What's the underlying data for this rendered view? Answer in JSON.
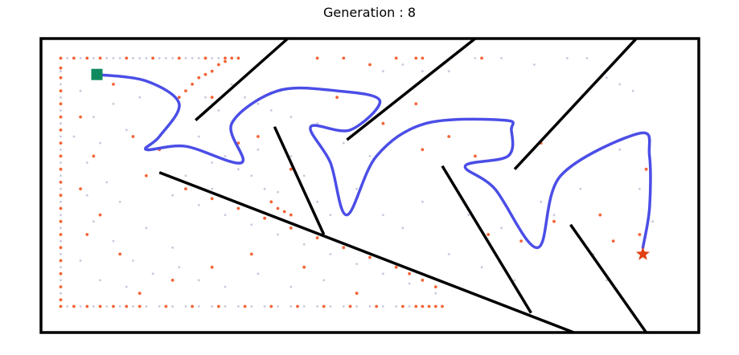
{
  "chart_data": {
    "type": "scatter",
    "title": "Generation : 8",
    "xlabel": "",
    "ylabel": "",
    "xlim": [
      0,
      100
    ],
    "ylim": [
      0,
      45
    ],
    "grid": false,
    "colors": {
      "frame": "#000000",
      "walls": "#000000",
      "path": "#4b4ee6",
      "archive_points": "#9a9ac0",
      "population_points": "#f25c2a",
      "start": "#0f8a5f",
      "goal": "#e04010"
    },
    "start_marker": {
      "shape": "square",
      "x": 8.5,
      "y": 39.5
    },
    "goal_marker": {
      "shape": "star",
      "x": 91.5,
      "y": 12
    },
    "walls": [
      [
        [
          23.5,
          32.5
        ],
        [
          37.5,
          45
        ]
      ],
      [
        [
          18,
          24.5
        ],
        [
          81,
          0
        ]
      ],
      [
        [
          35.5,
          31.5
        ],
        [
          43,
          15
        ]
      ],
      [
        [
          46.5,
          29.5
        ],
        [
          66,
          45
        ]
      ],
      [
        [
          61,
          25.5
        ],
        [
          74.5,
          3
        ]
      ],
      [
        [
          72,
          25
        ],
        [
          90.5,
          45
        ]
      ],
      [
        [
          80.5,
          16.5
        ],
        [
          92,
          0
        ]
      ]
    ],
    "path": [
      [
        8.5,
        39.5
      ],
      [
        16,
        38.5
      ],
      [
        21,
        35
      ],
      [
        18,
        30
      ],
      [
        16,
        28
      ],
      [
        22,
        28.5
      ],
      [
        30.5,
        26
      ],
      [
        29,
        32
      ],
      [
        36,
        37
      ],
      [
        45,
        37
      ],
      [
        51.5,
        35.5
      ],
      [
        47,
        31
      ],
      [
        41,
        31.5
      ],
      [
        44,
        26
      ],
      [
        46.5,
        18
      ],
      [
        51,
        27
      ],
      [
        58.5,
        32
      ],
      [
        70.5,
        32.5
      ],
      [
        71.5,
        31
      ],
      [
        71,
        27
      ],
      [
        64.5,
        25.5
      ],
      [
        69,
        22
      ],
      [
        75.5,
        13
      ],
      [
        79,
        24
      ],
      [
        91,
        30.5
      ],
      [
        92.5,
        27
      ],
      [
        92.5,
        19
      ],
      [
        91.5,
        13
      ]
    ],
    "archive_points": [
      [
        3,
        42
      ],
      [
        4,
        42
      ],
      [
        5,
        42
      ],
      [
        6,
        42
      ],
      [
        7,
        42
      ],
      [
        8,
        42
      ],
      [
        9,
        42
      ],
      [
        10,
        42
      ],
      [
        11,
        42
      ],
      [
        12,
        42
      ],
      [
        13,
        42
      ],
      [
        14,
        42
      ],
      [
        15,
        42
      ],
      [
        16,
        42
      ],
      [
        17,
        42
      ],
      [
        18,
        42
      ],
      [
        19,
        42
      ],
      [
        20,
        42
      ],
      [
        21,
        42
      ],
      [
        22,
        42
      ],
      [
        23,
        42
      ],
      [
        24,
        42
      ],
      [
        25,
        42
      ],
      [
        26,
        42
      ],
      [
        27,
        42
      ],
      [
        28,
        42
      ],
      [
        29,
        42
      ],
      [
        30,
        42
      ],
      [
        3,
        40
      ],
      [
        3,
        38
      ],
      [
        3,
        36
      ],
      [
        3,
        34
      ],
      [
        3,
        32
      ],
      [
        3,
        30
      ],
      [
        3,
        28
      ],
      [
        3,
        26
      ],
      [
        3,
        24
      ],
      [
        3,
        22
      ],
      [
        3,
        20
      ],
      [
        3,
        18
      ],
      [
        3,
        16
      ],
      [
        3,
        14
      ],
      [
        3,
        12
      ],
      [
        3,
        10
      ],
      [
        3,
        8
      ],
      [
        3,
        6
      ],
      [
        3,
        4
      ],
      [
        4,
        4
      ],
      [
        6,
        4
      ],
      [
        8,
        4
      ],
      [
        10,
        4
      ],
      [
        12,
        4
      ],
      [
        14,
        4
      ],
      [
        16,
        4
      ],
      [
        18,
        4
      ],
      [
        20,
        4
      ],
      [
        22,
        4
      ],
      [
        24,
        4
      ],
      [
        26,
        4
      ],
      [
        28,
        4
      ],
      [
        30,
        4
      ],
      [
        32,
        4
      ],
      [
        34,
        4
      ],
      [
        36,
        4
      ],
      [
        38,
        4
      ],
      [
        40,
        4
      ],
      [
        42,
        4
      ],
      [
        44,
        4
      ],
      [
        46,
        4
      ],
      [
        48,
        4
      ],
      [
        50,
        4
      ],
      [
        52,
        4
      ],
      [
        54,
        4
      ],
      [
        56,
        4
      ],
      [
        58,
        4
      ],
      [
        60,
        4
      ],
      [
        20,
        21
      ],
      [
        24,
        19.5
      ],
      [
        28,
        18
      ],
      [
        32,
        16.5
      ],
      [
        36,
        15
      ],
      [
        40,
        13.5
      ],
      [
        44,
        12
      ],
      [
        48,
        10.5
      ],
      [
        52,
        9
      ],
      [
        56,
        7.5
      ],
      [
        60,
        6
      ],
      [
        22,
        24
      ],
      [
        26,
        26
      ],
      [
        28,
        27
      ],
      [
        30,
        25
      ],
      [
        32,
        24
      ],
      [
        34,
        22
      ],
      [
        36,
        21.5
      ],
      [
        29,
        38
      ],
      [
        31,
        36
      ],
      [
        33,
        35
      ],
      [
        35,
        34
      ],
      [
        38,
        33
      ],
      [
        42,
        32
      ],
      [
        46,
        29
      ],
      [
        50,
        27
      ],
      [
        52,
        40
      ],
      [
        55,
        41
      ],
      [
        58,
        40
      ],
      [
        62,
        40
      ],
      [
        66,
        42
      ],
      [
        70,
        42
      ],
      [
        75,
        41
      ],
      [
        80,
        42
      ],
      [
        83,
        42
      ],
      [
        86,
        39
      ],
      [
        88,
        38
      ],
      [
        90,
        37
      ],
      [
        6,
        37
      ],
      [
        8,
        33
      ],
      [
        9,
        29
      ],
      [
        11,
        35
      ],
      [
        13,
        31
      ],
      [
        15,
        36
      ],
      [
        7,
        26
      ],
      [
        10,
        23
      ],
      [
        12,
        20
      ],
      [
        8,
        17
      ],
      [
        11,
        14
      ],
      [
        14,
        11
      ],
      [
        6,
        11
      ],
      [
        9,
        8
      ],
      [
        13,
        7
      ],
      [
        17,
        9
      ],
      [
        20,
        13
      ],
      [
        24,
        8
      ],
      [
        28,
        7
      ],
      [
        33,
        9
      ],
      [
        38,
        7
      ],
      [
        43,
        8
      ],
      [
        5,
        30
      ],
      [
        7,
        21
      ],
      [
        16,
        16
      ],
      [
        21,
        10
      ],
      [
        25,
        36
      ],
      [
        27,
        34
      ],
      [
        24,
        30
      ],
      [
        26,
        22
      ],
      [
        33,
        28
      ],
      [
        38,
        27
      ],
      [
        40,
        24
      ],
      [
        42,
        20
      ],
      [
        44,
        18
      ],
      [
        48,
        22
      ],
      [
        52,
        18
      ],
      [
        55,
        16
      ],
      [
        58,
        20
      ],
      [
        62,
        12
      ],
      [
        65,
        18
      ],
      [
        67,
        10
      ],
      [
        70,
        16
      ],
      [
        72,
        8
      ],
      [
        76,
        20
      ],
      [
        78,
        18
      ],
      [
        82,
        22
      ],
      [
        84,
        12
      ],
      [
        86,
        8
      ],
      [
        88,
        28
      ],
      [
        91,
        22
      ],
      [
        93,
        17
      ]
    ],
    "population_points": [
      [
        3,
        42
      ],
      [
        5,
        42
      ],
      [
        7,
        42
      ],
      [
        3,
        40.5
      ],
      [
        3,
        39
      ],
      [
        3,
        37
      ],
      [
        3,
        35
      ],
      [
        3,
        33
      ],
      [
        3,
        31
      ],
      [
        3,
        29
      ],
      [
        3,
        27
      ],
      [
        3,
        25
      ],
      [
        3,
        23
      ],
      [
        3,
        21
      ],
      [
        3,
        19
      ],
      [
        3,
        17
      ],
      [
        3,
        15
      ],
      [
        3,
        13
      ],
      [
        3,
        11
      ],
      [
        3,
        9
      ],
      [
        3,
        7
      ],
      [
        3,
        5
      ],
      [
        3,
        4
      ],
      [
        9,
        42
      ],
      [
        13,
        42
      ],
      [
        17,
        42
      ],
      [
        21,
        42
      ],
      [
        25,
        42
      ],
      [
        28,
        42
      ],
      [
        29,
        42
      ],
      [
        30,
        42
      ],
      [
        21,
        36
      ],
      [
        22,
        37
      ],
      [
        23,
        38
      ],
      [
        24,
        39
      ],
      [
        25,
        39.5
      ],
      [
        26,
        40
      ],
      [
        27,
        41
      ],
      [
        28,
        41.5
      ],
      [
        5,
        4
      ],
      [
        7,
        4
      ],
      [
        9,
        4
      ],
      [
        11,
        4
      ],
      [
        13,
        4
      ],
      [
        15,
        4
      ],
      [
        19,
        4
      ],
      [
        23,
        4
      ],
      [
        27,
        4
      ],
      [
        31,
        4
      ],
      [
        35,
        4
      ],
      [
        39,
        4
      ],
      [
        43,
        4
      ],
      [
        47,
        4
      ],
      [
        51,
        4
      ],
      [
        55,
        4
      ],
      [
        57,
        4
      ],
      [
        58,
        4
      ],
      [
        59,
        4
      ],
      [
        60,
        4
      ],
      [
        61,
        4
      ],
      [
        22,
        22
      ],
      [
        26,
        20.5
      ],
      [
        30,
        19
      ],
      [
        34,
        17.5
      ],
      [
        38,
        16
      ],
      [
        42,
        14.5
      ],
      [
        46,
        13
      ],
      [
        50,
        11.5
      ],
      [
        54,
        10
      ],
      [
        56,
        9
      ],
      [
        58,
        8
      ],
      [
        60,
        7
      ],
      [
        35,
        20
      ],
      [
        36,
        19
      ],
      [
        37,
        18.5
      ],
      [
        38,
        18
      ],
      [
        42,
        42
      ],
      [
        46,
        42
      ],
      [
        50,
        41
      ],
      [
        54,
        42
      ],
      [
        57,
        42
      ],
      [
        58,
        42
      ],
      [
        67,
        42
      ],
      [
        57,
        35
      ],
      [
        6,
        33
      ],
      [
        8,
        27
      ],
      [
        11,
        38
      ],
      [
        14,
        30
      ],
      [
        9,
        18
      ],
      [
        12,
        12
      ],
      [
        6,
        22
      ],
      [
        16,
        24
      ],
      [
        15,
        6
      ],
      [
        20,
        8
      ],
      [
        26,
        10
      ],
      [
        32,
        12
      ],
      [
        40,
        10
      ],
      [
        48,
        6
      ],
      [
        7,
        15
      ],
      [
        18,
        28
      ],
      [
        26,
        36
      ],
      [
        30,
        29
      ],
      [
        33,
        30
      ],
      [
        38,
        25
      ],
      [
        45,
        36
      ],
      [
        52,
        32
      ],
      [
        58,
        28
      ],
      [
        62,
        30
      ],
      [
        66,
        27
      ],
      [
        68,
        15
      ],
      [
        73,
        14
      ],
      [
        76,
        29
      ],
      [
        78,
        17
      ],
      [
        85,
        18
      ],
      [
        87,
        14
      ],
      [
        92,
        25
      ],
      [
        91,
        15
      ]
    ]
  }
}
